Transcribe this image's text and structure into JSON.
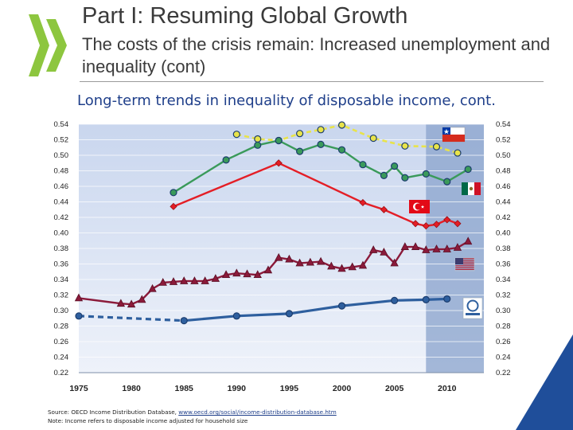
{
  "slide": {
    "title": "Part I: Resuming Global Growth",
    "subtitle": "The costs of the crisis remain: Increased unemployment and inequality (cont)",
    "source_prefix": "Source: OECD Income Distribution Database, ",
    "source_url": "www.oecd.org/social/income-distribution-database.htm",
    "note": "Note: Income refers to disposable income adjusted for household size"
  },
  "colors": {
    "logo_green": "#8dc63f",
    "accent_blue": "#1f4e9a",
    "chile": "#e8e34a",
    "mexico": "#3a9a5a",
    "turkey": "#e41e26",
    "usa": "#8b1a3a",
    "oecd": "#2e5f9e"
  },
  "chart_data": {
    "type": "line",
    "title": "Long-term trends in inequality of disposable income, cont.",
    "xlim": [
      1975,
      2012
    ],
    "ylim": [
      0.22,
      0.54
    ],
    "x_ticks": [
      "1975",
      "1980",
      "1985",
      "1990",
      "1995",
      "2000",
      "2005",
      "2010"
    ],
    "y_ticks": [
      "0.22",
      "0.24",
      "0.26",
      "0.28",
      "0.30",
      "0.32",
      "0.34",
      "0.36",
      "0.38",
      "0.40",
      "0.42",
      "0.44",
      "0.46",
      "0.48",
      "0.50",
      "0.52",
      "0.54"
    ],
    "shaded_region": [
      2008,
      2013
    ],
    "grid": true,
    "series": [
      {
        "flag": "Chile",
        "color": "#e8e34a",
        "marker": "circle",
        "dashed": true,
        "x": [
          1990,
          1992,
          1994,
          1996,
          1998,
          2000,
          2003,
          2006,
          2009,
          2011
        ],
        "y": [
          0.527,
          0.521,
          0.519,
          0.528,
          0.533,
          0.539,
          0.522,
          0.512,
          0.511,
          0.503
        ]
      },
      {
        "flag": "Mexico",
        "color": "#3a9a5a",
        "marker": "circle",
        "dashed": false,
        "x": [
          1984,
          1989,
          1992,
          1994,
          1996,
          1998,
          2000,
          2002,
          2004,
          2005,
          2006,
          2008,
          2010,
          2012
        ],
        "y": [
          0.452,
          0.494,
          0.513,
          0.519,
          0.505,
          0.514,
          0.507,
          0.488,
          0.474,
          0.486,
          0.471,
          0.476,
          0.466,
          0.482
        ]
      },
      {
        "flag": "Turkey",
        "color": "#e41e26",
        "marker": "diamond",
        "dashed": false,
        "x": [
          1984,
          1994,
          2002,
          2004,
          2007,
          2008,
          2009,
          2010,
          2011
        ],
        "y": [
          0.434,
          0.49,
          0.439,
          0.43,
          0.412,
          0.409,
          0.411,
          0.417,
          0.412
        ]
      },
      {
        "flag": "USA",
        "color": "#8b1a3a",
        "marker": "triangle",
        "dashed": false,
        "x": [
          1975,
          1979,
          1980,
          1981,
          1982,
          1983,
          1984,
          1985,
          1986,
          1987,
          1988,
          1989,
          1990,
          1991,
          1992,
          1993,
          1994,
          1995,
          1996,
          1997,
          1998,
          1999,
          2000,
          2001,
          2002,
          2003,
          2004,
          2005,
          2006,
          2007,
          2008,
          2009,
          2010,
          2011,
          2012
        ],
        "y": [
          0.316,
          0.309,
          0.308,
          0.314,
          0.328,
          0.336,
          0.337,
          0.338,
          0.338,
          0.338,
          0.341,
          0.346,
          0.348,
          0.347,
          0.346,
          0.352,
          0.368,
          0.366,
          0.361,
          0.362,
          0.363,
          0.357,
          0.354,
          0.356,
          0.358,
          0.378,
          0.375,
          0.361,
          0.382,
          0.382,
          0.378,
          0.379,
          0.379,
          0.381,
          0.389
        ]
      },
      {
        "flag": "OECD",
        "color": "#2e5f9e",
        "marker": "circle",
        "dashed": false,
        "dashed_until": 1985,
        "x": [
          1975,
          1985,
          1990,
          1995,
          2000,
          2005,
          2008,
          2010
        ],
        "y": [
          0.293,
          0.287,
          0.293,
          0.296,
          0.306,
          0.313,
          0.314,
          0.315
        ]
      }
    ]
  }
}
